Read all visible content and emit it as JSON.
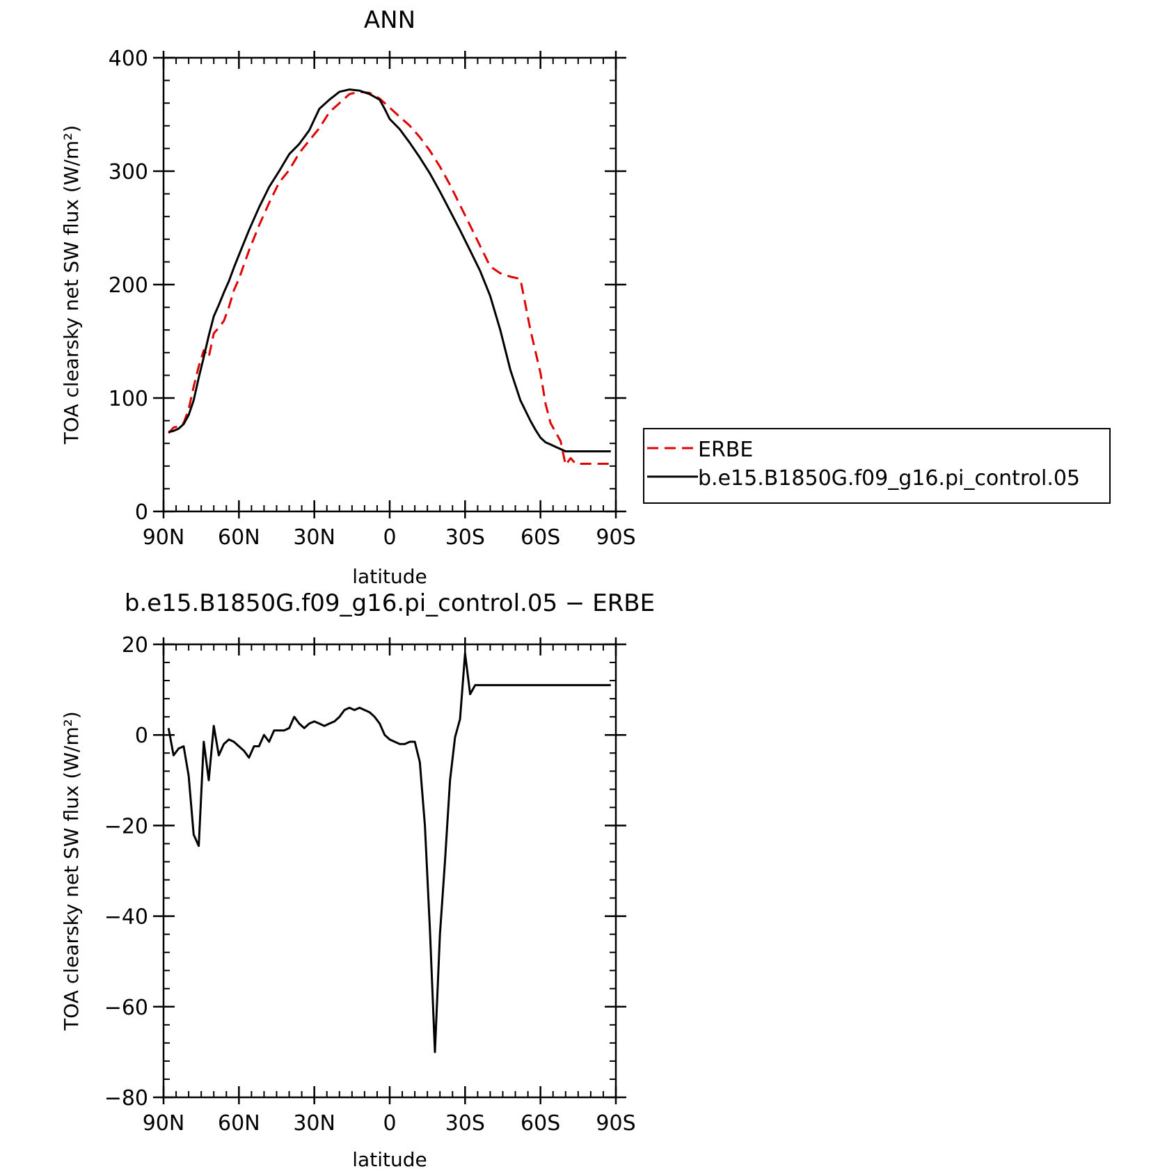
{
  "chart_data": [
    {
      "type": "line",
      "title": "ANN",
      "xlabel": "latitude",
      "ylabel": "TOA clearsky net SW flux (W/m²)",
      "xlim": [
        90,
        -90
      ],
      "ylim": [
        0,
        400
      ],
      "x_ticks": [
        {
          "value": 90,
          "label": "90N"
        },
        {
          "value": 60,
          "label": "60N"
        },
        {
          "value": 30,
          "label": "30N"
        },
        {
          "value": 0,
          "label": "0"
        },
        {
          "value": -30,
          "label": "30S"
        },
        {
          "value": -60,
          "label": "60S"
        },
        {
          "value": -90,
          "label": "90S"
        }
      ],
      "y_ticks": [
        {
          "value": 0,
          "label": "0"
        },
        {
          "value": 100,
          "label": "100"
        },
        {
          "value": 200,
          "label": "200"
        },
        {
          "value": 300,
          "label": "300"
        },
        {
          "value": 400,
          "label": "400"
        }
      ],
      "legend": {
        "position": "right"
      },
      "series": [
        {
          "name": "ERBE",
          "color": "#e00000",
          "dash": "dashed",
          "x": [
            88,
            86,
            84,
            82,
            80,
            78,
            76,
            74,
            72,
            70,
            68,
            66,
            64,
            62,
            60,
            56,
            52,
            48,
            44,
            40,
            36,
            32,
            28,
            24,
            20,
            16,
            12,
            8,
            4,
            0,
            -4,
            -8,
            -12,
            -16,
            -20,
            -24,
            -28,
            -32,
            -36,
            -40,
            -44,
            -48,
            -52,
            -56,
            -60,
            -62,
            -64,
            -66,
            -68,
            -70,
            -72,
            -74,
            -76,
            -78,
            -80,
            -82,
            -84,
            -86,
            -88
          ],
          "y": [
            69,
            74,
            75,
            78,
            90,
            110,
            128,
            142,
            136,
            157,
            162,
            168,
            180,
            195,
            205,
            230,
            252,
            272,
            290,
            301,
            316,
            327,
            338,
            352,
            360,
            368,
            370,
            369,
            364,
            356,
            348,
            340,
            330,
            318,
            304,
            288,
            270,
            252,
            234,
            216,
            210,
            207,
            205,
            160,
            122,
            95,
            78,
            70,
            62,
            41,
            47,
            42,
            42,
            42,
            42,
            42,
            42,
            42,
            42
          ]
        },
        {
          "name": "b.e15.B1850G.f09_g16.pi_control.05",
          "color": "#000000",
          "dash": "solid",
          "x": [
            88,
            86,
            84,
            82,
            80,
            78,
            76,
            74,
            72,
            70,
            68,
            66,
            64,
            62,
            60,
            56,
            52,
            48,
            44,
            40,
            36,
            32,
            28,
            24,
            20,
            16,
            12,
            8,
            4,
            2,
            0,
            -4,
            -8,
            -12,
            -16,
            -20,
            -24,
            -28,
            -32,
            -36,
            -40,
            -44,
            -48,
            -52,
            -56,
            -58,
            -60,
            -62,
            -64,
            -66,
            -68,
            -70,
            -72,
            -74,
            -76,
            -78,
            -80,
            -82,
            -84,
            -86,
            -88
          ],
          "y": [
            70,
            71,
            73,
            77,
            85,
            98,
            118,
            136,
            155,
            172,
            182,
            193,
            203,
            215,
            226,
            248,
            268,
            286,
            300,
            315,
            324,
            336,
            355,
            363,
            370,
            372,
            371,
            368,
            363,
            355,
            346,
            337,
            325,
            312,
            298,
            282,
            265,
            248,
            230,
            212,
            190,
            160,
            125,
            98,
            80,
            72,
            65,
            61,
            59,
            57,
            55,
            53,
            53,
            53,
            53,
            53,
            53,
            53,
            53,
            53,
            53
          ]
        }
      ]
    },
    {
      "type": "line",
      "title": "b.e15.B1850G.f09_g16.pi_control.05 − ERBE",
      "xlabel": "latitude",
      "ylabel": "TOA clearsky net SW flux (W/m²)",
      "xlim": [
        90,
        -90
      ],
      "ylim": [
        -80,
        20
      ],
      "x_ticks": [
        {
          "value": 90,
          "label": "90N"
        },
        {
          "value": 60,
          "label": "60N"
        },
        {
          "value": 30,
          "label": "30N"
        },
        {
          "value": 0,
          "label": "0"
        },
        {
          "value": -30,
          "label": "30S"
        },
        {
          "value": -60,
          "label": "60S"
        },
        {
          "value": -90,
          "label": "90S"
        }
      ],
      "y_ticks": [
        {
          "value": -80,
          "label": "−80"
        },
        {
          "value": -60,
          "label": "−60"
        },
        {
          "value": -40,
          "label": "−40"
        },
        {
          "value": -20,
          "label": "−20"
        },
        {
          "value": 0,
          "label": "0"
        },
        {
          "value": 20,
          "label": "20"
        }
      ],
      "series": [
        {
          "color": "#000000",
          "dash": "solid",
          "x": [
            88,
            86,
            84,
            82,
            80,
            78,
            76,
            74,
            72,
            70,
            68,
            66,
            64,
            62,
            60,
            58,
            56,
            54,
            52,
            50,
            48,
            46,
            44,
            42,
            40,
            38,
            36,
            34,
            32,
            30,
            28,
            26,
            24,
            22,
            20,
            18,
            16,
            14,
            12,
            10,
            8,
            6,
            4,
            2,
            0,
            -2,
            -4,
            -6,
            -8,
            -10,
            -12,
            -14,
            -16,
            -18,
            -20,
            -22,
            -24,
            -26,
            -28,
            -30,
            -32,
            -34,
            -36,
            -38,
            -40,
            -42,
            -44,
            -46,
            -48,
            -50,
            -52,
            -54,
            -56,
            -58,
            -60,
            -62,
            -64,
            -66,
            -68,
            -70,
            -72,
            -74,
            -76,
            -78,
            -80,
            -82,
            -84,
            -86,
            -88
          ],
          "y": [
            1.5,
            -4.5,
            -3,
            -2.5,
            -9,
            -22,
            -24.5,
            -1.5,
            -10,
            2,
            -4.5,
            -2,
            -1,
            -1.5,
            -2.5,
            -3.5,
            -5,
            -2.5,
            -2.5,
            0,
            -1.5,
            1,
            1,
            1,
            1.5,
            4,
            2.5,
            1.5,
            2.5,
            3,
            2.5,
            2,
            2.5,
            3,
            4,
            5.5,
            6,
            5.5,
            6,
            5.5,
            5,
            4,
            2.5,
            0,
            -1,
            -1.5,
            -2,
            -2,
            -1.5,
            -1.5,
            -6,
            -20,
            -43,
            -70,
            -44,
            -28,
            -10,
            -0.5,
            3.5,
            18,
            9,
            11,
            11,
            11,
            11,
            11,
            11,
            11,
            11,
            11,
            11,
            11,
            11,
            11,
            11,
            11,
            11,
            11,
            11,
            11,
            11,
            11,
            11,
            11,
            11,
            11,
            11,
            11,
            11
          ]
        }
      ]
    }
  ]
}
